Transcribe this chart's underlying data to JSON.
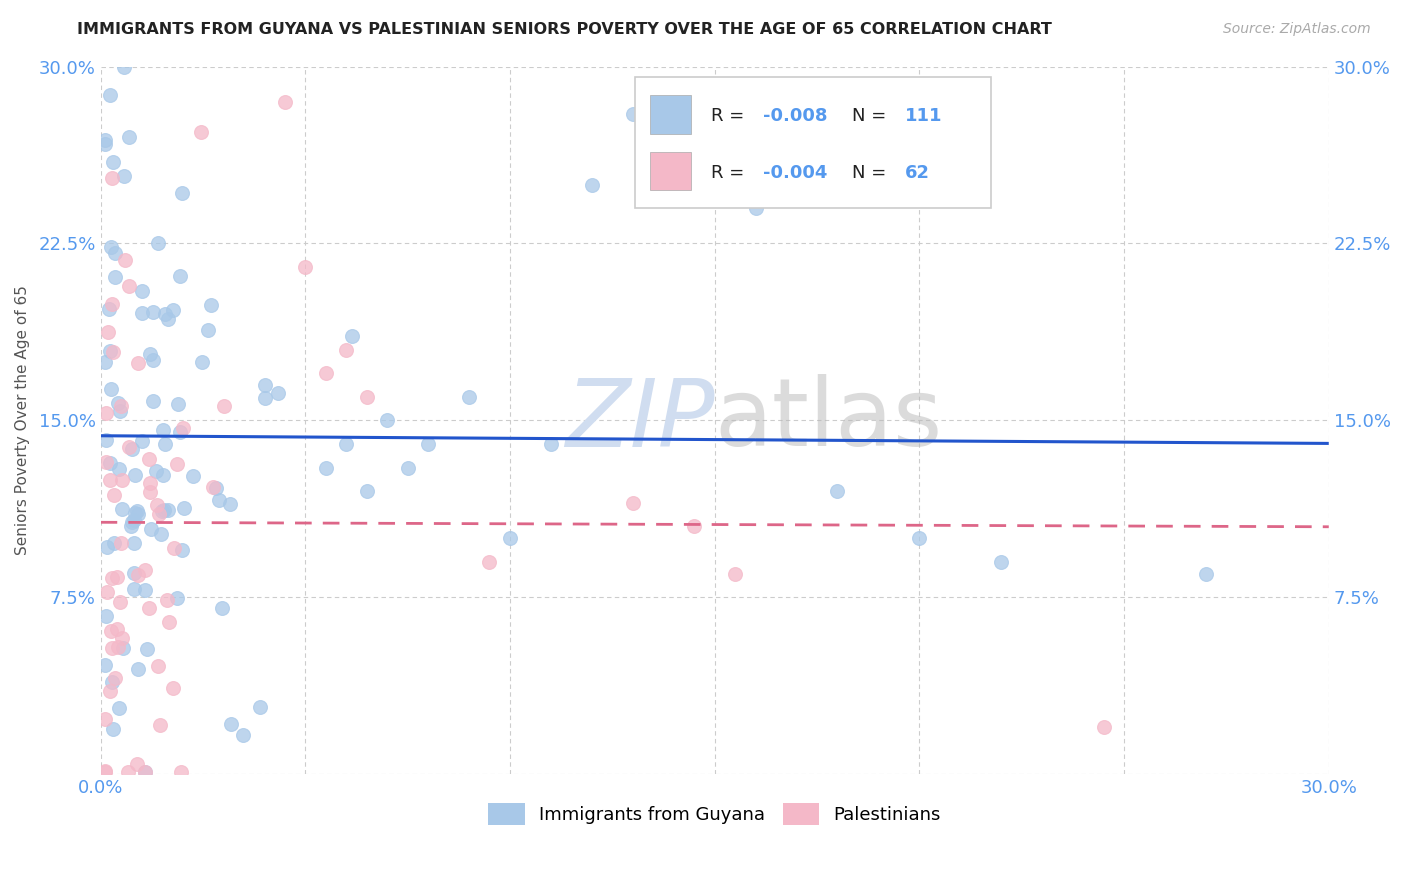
{
  "title": "IMMIGRANTS FROM GUYANA VS PALESTINIAN SENIORS POVERTY OVER THE AGE OF 65 CORRELATION CHART",
  "source": "Source: ZipAtlas.com",
  "ylabel": "Seniors Poverty Over the Age of 65",
  "xlim": [
    0.0,
    0.3
  ],
  "ylim": [
    0.0,
    0.3
  ],
  "xtick_positions": [
    0.0,
    0.05,
    0.1,
    0.15,
    0.2,
    0.25,
    0.3
  ],
  "ytick_positions": [
    0.0,
    0.075,
    0.15,
    0.225,
    0.3
  ],
  "xtick_labels": [
    "0.0%",
    "",
    "",
    "",
    "",
    "",
    "30.0%"
  ],
  "ytick_labels": [
    "",
    "7.5%",
    "15.0%",
    "22.5%",
    "30.0%"
  ],
  "legend_r1": "R = -0.008",
  "legend_n1": "N = 111",
  "legend_r2": "R = -0.004",
  "legend_n2": "N = 62",
  "color_guyana": "#a8c8e8",
  "color_palestinian": "#f4b8c8",
  "trendline_guyana_color": "#2255cc",
  "trendline_pal_color": "#dd6688",
  "background_color": "#ffffff",
  "tick_color": "#5599ee",
  "grid_color": "#cccccc",
  "watermark_color": "#d0ddf0"
}
